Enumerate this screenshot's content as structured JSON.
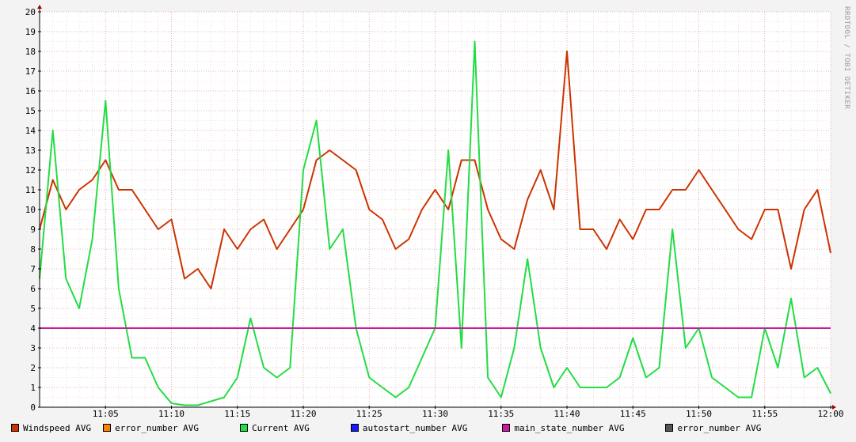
{
  "watermark": "RRDTOOL / TOBI OETIKER",
  "chart_data": {
    "type": "line",
    "ylim": [
      0,
      20
    ],
    "yticks": [
      0,
      1,
      2,
      3,
      4,
      5,
      6,
      7,
      8,
      9,
      10,
      11,
      12,
      13,
      14,
      15,
      16,
      17,
      18,
      19,
      20
    ],
    "xlim": [
      "11:00",
      "12:00"
    ],
    "xticks": [
      "11:05",
      "11:10",
      "11:15",
      "11:20",
      "11:25",
      "11:30",
      "11:35",
      "11:40",
      "11:45",
      "11:50",
      "11:55",
      "12:00"
    ],
    "legend": [
      {
        "name": "Windspeed AVG",
        "color": "#cc3300"
      },
      {
        "name": "error_number AVG",
        "color": "#ff8000"
      },
      {
        "name": "Current AVG",
        "color": "#22dd44"
      },
      {
        "name": "autostart_number AVG",
        "color": "#1a1aff"
      },
      {
        "name": "main_state_number AVG",
        "color": "#cc1aa0"
      },
      {
        "name": "error_number AVG",
        "color": "#555555"
      }
    ],
    "series": [
      {
        "name": "Windspeed AVG",
        "color": "#cc3300",
        "x": [
          "11:00",
          "11:01",
          "11:02",
          "11:03",
          "11:04",
          "11:05",
          "11:06",
          "11:07",
          "11:08",
          "11:09",
          "11:10",
          "11:11",
          "11:12",
          "11:13",
          "11:14",
          "11:15",
          "11:16",
          "11:17",
          "11:18",
          "11:19",
          "11:20",
          "11:21",
          "11:22",
          "11:23",
          "11:24",
          "11:25",
          "11:26",
          "11:27",
          "11:28",
          "11:29",
          "11:30",
          "11:31",
          "11:32",
          "11:33",
          "11:34",
          "11:35",
          "11:36",
          "11:37",
          "11:38",
          "11:39",
          "11:40",
          "11:41",
          "11:42",
          "11:43",
          "11:44",
          "11:45",
          "11:46",
          "11:47",
          "11:48",
          "11:49",
          "11:50",
          "11:51",
          "11:52",
          "11:53",
          "11:54",
          "11:55",
          "11:56",
          "11:57",
          "11:58",
          "11:59",
          "12:00"
        ],
        "values": [
          9,
          11.5,
          10,
          11,
          11.5,
          12.5,
          11,
          11,
          10,
          9,
          9.5,
          6.5,
          7,
          6,
          9,
          8,
          9,
          9.5,
          8,
          9,
          10,
          12.5,
          13,
          12.5,
          12,
          10,
          9.5,
          8,
          8.5,
          10,
          11,
          10,
          12.5,
          12.5,
          10,
          8.5,
          8,
          10.5,
          12,
          10,
          18,
          9,
          9,
          8,
          9.5,
          8.5,
          10,
          10,
          11,
          11,
          12,
          11,
          10,
          9,
          8.5,
          10,
          10,
          7,
          10,
          11,
          7.8
        ]
      },
      {
        "name": "Current AVG",
        "color": "#22dd44",
        "x": [
          "11:00",
          "11:01",
          "11:02",
          "11:03",
          "11:04",
          "11:05",
          "11:06",
          "11:07",
          "11:08",
          "11:09",
          "11:10",
          "11:11",
          "11:12",
          "11:13",
          "11:14",
          "11:15",
          "11:16",
          "11:17",
          "11:18",
          "11:19",
          "11:20",
          "11:21",
          "11:22",
          "11:23",
          "11:24",
          "11:25",
          "11:26",
          "11:27",
          "11:28",
          "11:29",
          "11:30",
          "11:31",
          "11:32",
          "11:33",
          "11:34",
          "11:35",
          "11:36",
          "11:37",
          "11:38",
          "11:39",
          "11:40",
          "11:41",
          "11:42",
          "11:43",
          "11:44",
          "11:45",
          "11:46",
          "11:47",
          "11:48",
          "11:49",
          "11:50",
          "11:51",
          "11:52",
          "11:53",
          "11:54",
          "11:55",
          "11:56",
          "11:57",
          "11:58",
          "11:59",
          "12:00"
        ],
        "values": [
          6.5,
          14,
          6.5,
          5,
          8.5,
          15.5,
          6,
          2.5,
          2.5,
          1,
          0.2,
          0.1,
          0.1,
          0.3,
          0.5,
          1.5,
          4.5,
          2,
          1.5,
          2,
          12,
          14.5,
          8,
          9,
          4,
          1.5,
          1,
          0.5,
          1,
          2.5,
          4,
          13,
          3,
          18.5,
          1.5,
          0.5,
          3,
          7.5,
          3,
          1,
          2,
          1,
          1,
          1,
          1.5,
          3.5,
          1.5,
          2,
          9,
          3,
          4,
          1.5,
          1,
          0.5,
          0.5,
          4,
          2,
          5.5,
          1.5,
          2,
          0.7
        ]
      },
      {
        "name": "main_state_number AVG",
        "color": "#cc1aa0",
        "x": [
          "11:00",
          "12:00"
        ],
        "values": [
          4,
          4
        ]
      }
    ]
  }
}
